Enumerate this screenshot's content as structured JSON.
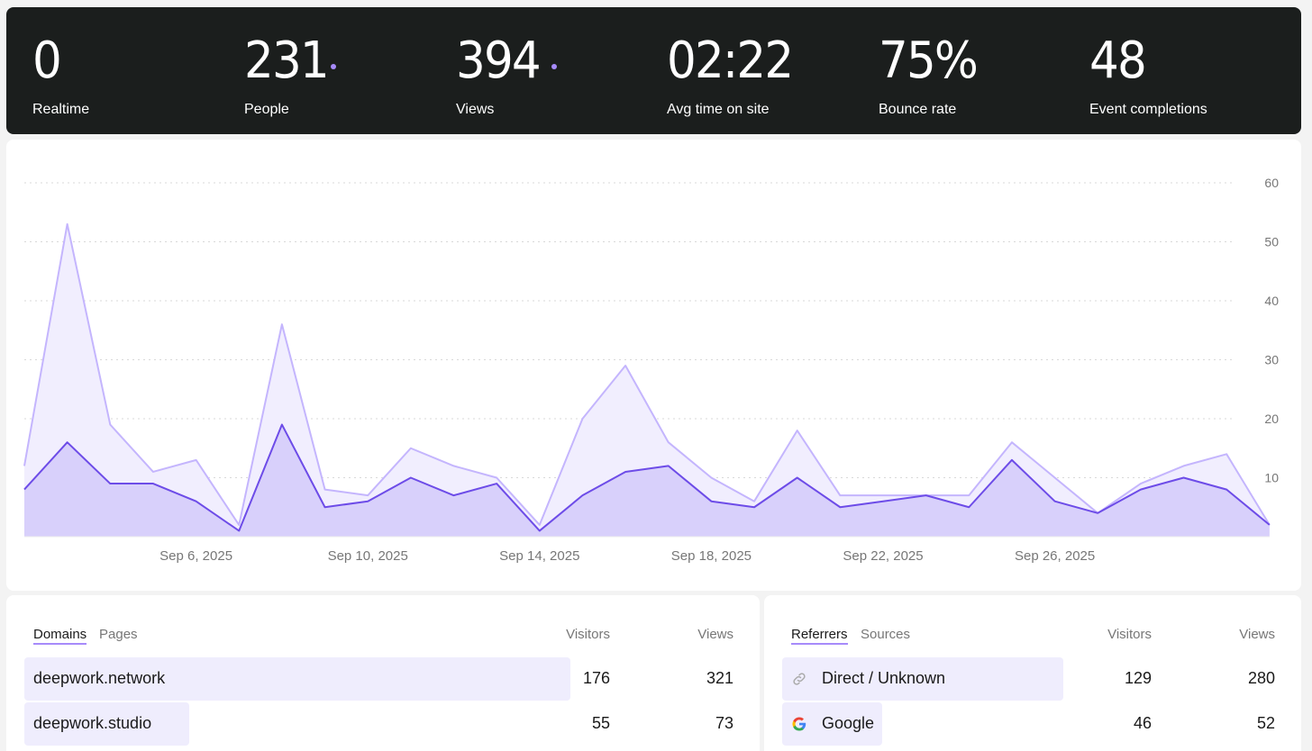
{
  "stats": [
    {
      "value": "0",
      "label": "Realtime",
      "dot": false
    },
    {
      "value": "231",
      "label": "People",
      "dot": true
    },
    {
      "value": "394",
      "label": "Views",
      "dot": true
    },
    {
      "value": "02:22",
      "label": "Avg time on site",
      "dot": false
    },
    {
      "value": "75%",
      "label": "Bounce rate",
      "dot": false
    },
    {
      "value": "48",
      "label": "Event completions",
      "dot": false
    }
  ],
  "colors": {
    "accent_line": "#6d4ce8",
    "accent_fill": "#d8d0fb",
    "views_line": "#c4b5fd",
    "views_fill": "#f1eefe",
    "dot": "#a78bfa"
  },
  "chart_data": {
    "type": "area",
    "title": "",
    "xlabel": "",
    "ylabel": "",
    "ylim": [
      0,
      60
    ],
    "yticks": [
      10,
      20,
      30,
      40,
      50,
      60
    ],
    "x_tick_labels": [
      {
        "index": 4,
        "label": "Sep 6, 2025"
      },
      {
        "index": 8,
        "label": "Sep 10, 2025"
      },
      {
        "index": 12,
        "label": "Sep 14, 2025"
      },
      {
        "index": 16,
        "label": "Sep 18, 2025"
      },
      {
        "index": 20,
        "label": "Sep 22, 2025"
      },
      {
        "index": 24,
        "label": "Sep 26, 2025"
      }
    ],
    "x": [
      "Sep 2",
      "Sep 3",
      "Sep 4",
      "Sep 5",
      "Sep 6",
      "Sep 7",
      "Sep 8",
      "Sep 9",
      "Sep 10",
      "Sep 11",
      "Sep 12",
      "Sep 13",
      "Sep 14",
      "Sep 15",
      "Sep 16",
      "Sep 17",
      "Sep 18",
      "Sep 19",
      "Sep 20",
      "Sep 21",
      "Sep 22",
      "Sep 23",
      "Sep 24",
      "Sep 25",
      "Sep 26",
      "Sep 27",
      "Sep 28",
      "Sep 29",
      "Sep 30",
      "Oct 1"
    ],
    "series": [
      {
        "name": "Views",
        "values": [
          12,
          53,
          19,
          11,
          13,
          2,
          36,
          8,
          7,
          15,
          12,
          10,
          2,
          20,
          29,
          16,
          10,
          6,
          18,
          7,
          7,
          7,
          7,
          16,
          10,
          4,
          9,
          12,
          14,
          2
        ]
      },
      {
        "name": "People",
        "values": [
          8,
          16,
          9,
          9,
          6,
          1,
          19,
          5,
          6,
          10,
          7,
          9,
          1,
          7,
          11,
          12,
          6,
          5,
          10,
          5,
          6,
          7,
          5,
          13,
          6,
          4,
          8,
          10,
          8,
          2
        ]
      }
    ]
  },
  "domains_table": {
    "tabs": [
      "Domains",
      "Pages"
    ],
    "col_visitors": "Visitors",
    "col_views": "Views",
    "rows": [
      {
        "label": "deepwork.network",
        "visitors": "176",
        "views": "321",
        "share": 0.78
      },
      {
        "label": "deepwork.studio",
        "visitors": "55",
        "views": "73",
        "share": 0.235
      }
    ]
  },
  "referrers_table": {
    "tabs": [
      "Referrers",
      "Sources"
    ],
    "col_visitors": "Visitors",
    "col_views": "Views",
    "rows": [
      {
        "label": "Direct / Unknown",
        "visitors": "129",
        "views": "280",
        "icon": "link-icon",
        "share": 0.55
      },
      {
        "label": "Google",
        "visitors": "46",
        "views": "52",
        "icon": "google-icon",
        "share": 0.195
      }
    ]
  }
}
